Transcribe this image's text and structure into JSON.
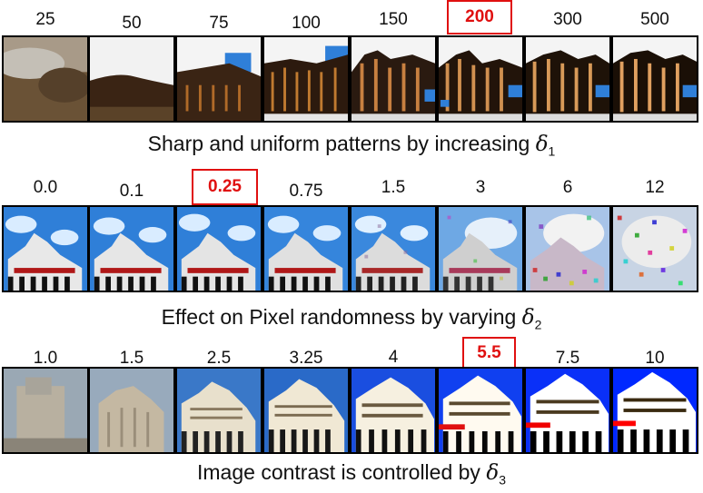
{
  "rows": [
    {
      "labels": [
        "25",
        "50",
        "75",
        "100",
        "150",
        "200",
        "300",
        "500"
      ],
      "highlight": 5,
      "caption_text": "Sharp and uniform patterns by increasing ",
      "caption_symbol": "δ",
      "caption_sub": "1"
    },
    {
      "labels": [
        "0.0",
        "0.1",
        "0.25",
        "0.75",
        "1.5",
        "3",
        "6",
        "12"
      ],
      "highlight": 2,
      "caption_text": "Effect on Pixel randomness by varying ",
      "caption_symbol": "δ",
      "caption_sub": "2"
    },
    {
      "labels": [
        "1.0",
        "1.5",
        "2.5",
        "3.25",
        "4",
        "5.5",
        "7.5",
        "10"
      ],
      "highlight": 5,
      "caption_text": "Image contrast is controlled by ",
      "caption_symbol": "δ",
      "caption_sub": "3"
    }
  ],
  "colors": {
    "highlight": "#e01010",
    "sky": "#2f7fd8",
    "building_dark": "#3a2414"
  }
}
